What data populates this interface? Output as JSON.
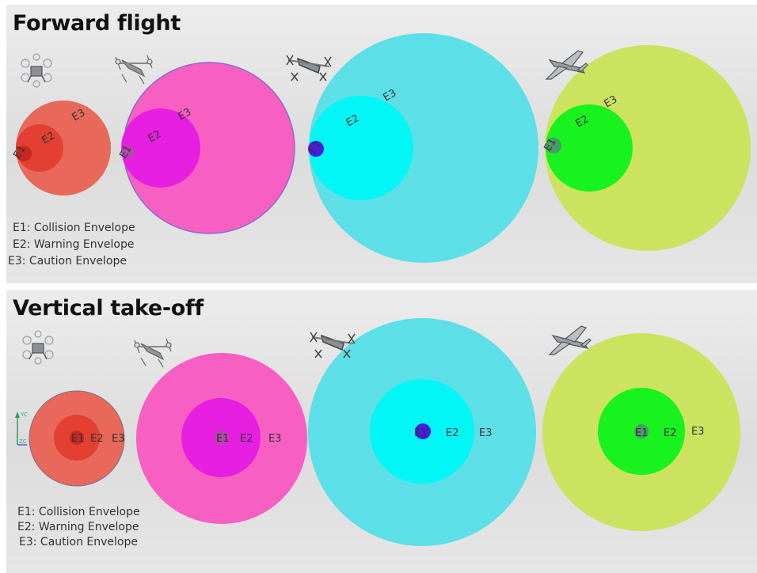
{
  "forward_flight": {
    "title": "Forward flight",
    "legend": [
      "E1: Collision Envelope",
      "E2: Warning Envelope",
      "E3: Caution Envelope"
    ],
    "envelope_labels": {
      "e1": "E1",
      "e2": "E2",
      "e3": "E3"
    },
    "aircraft": [
      "multicopter-icon",
      "tiltrotor-icon",
      "lift-cruise-icon",
      "fixed-wing-icon"
    ]
  },
  "vertical_takeoff": {
    "title": "Vertical take-off",
    "legend": [
      "E1: Collision Envelope",
      "E2: Warning Envelope",
      "E3: Caution Envelope"
    ],
    "envelope_labels": {
      "e1": "E1",
      "e2": "E2",
      "e3": "E3"
    },
    "aircraft": [
      "multicopter-icon",
      "tiltrotor-icon",
      "lift-cruise-icon",
      "fixed-wing-icon"
    ]
  },
  "axis_labels": {
    "y": "YC",
    "z": "ZC"
  },
  "colors": {
    "group1": {
      "e3": "#e8695a",
      "e2": "#e33f32",
      "e1": "#c42a22"
    },
    "group2": {
      "e3": "#f85fc2",
      "e2": "#e71fe1",
      "e1": "#b04aa9"
    },
    "group3": {
      "e3": "#5cdfe7",
      "e2": "#02f6f6",
      "e1": "#4a1ce0"
    },
    "group4": {
      "e3": "#cce35f",
      "e2": "#18f21f",
      "e1": "#4a9a68"
    }
  }
}
